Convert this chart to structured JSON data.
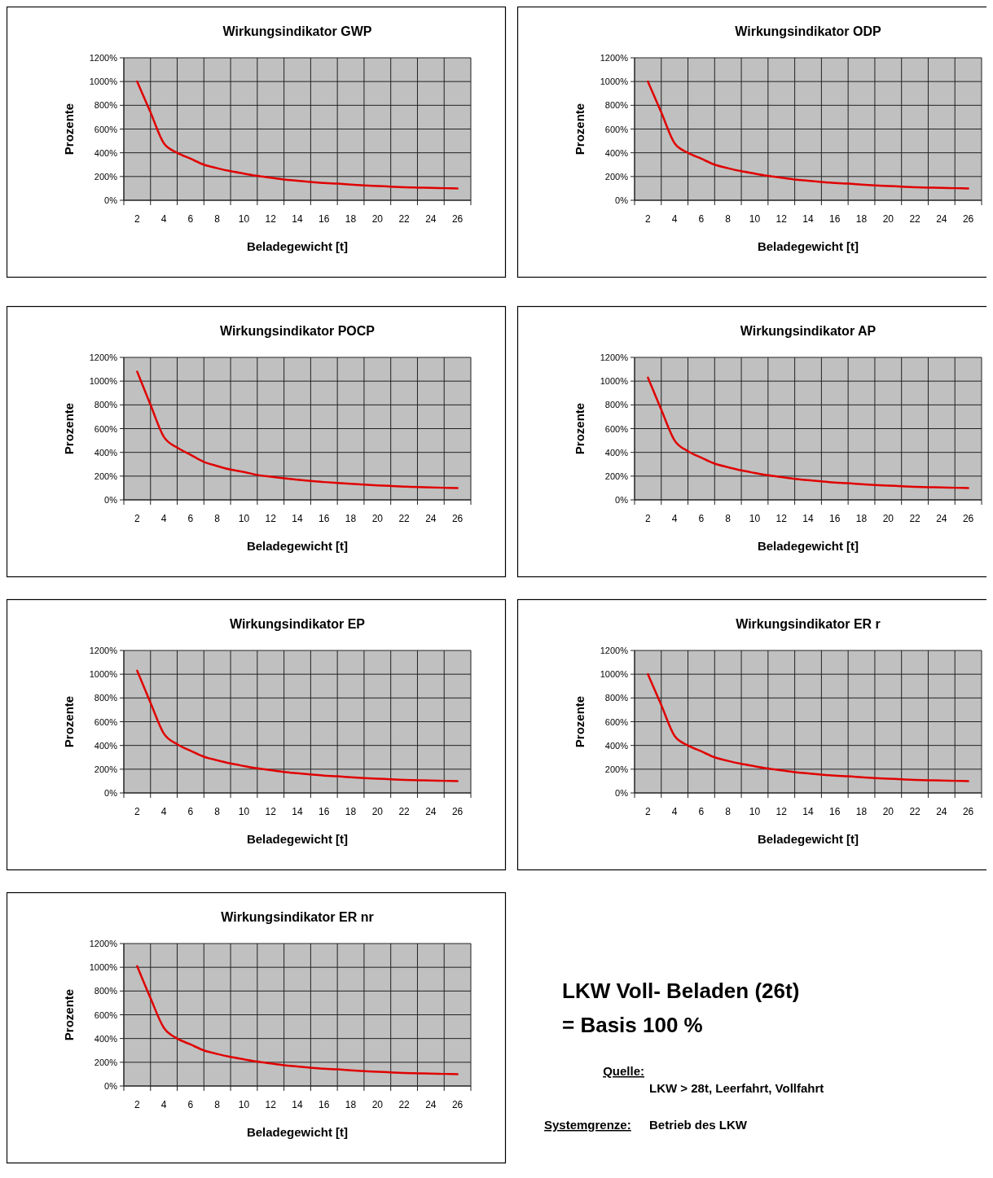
{
  "chart_data": [
    {
      "type": "line",
      "title": "Wirkungsindikator GWP",
      "xlabel": "Beladegewicht [t]",
      "ylabel": "Prozente",
      "x": [
        2,
        3,
        4,
        5,
        6,
        7,
        8,
        9,
        10,
        11,
        12,
        13,
        14,
        15,
        16,
        17,
        18,
        19,
        20,
        21,
        22,
        23,
        24,
        25,
        26
      ],
      "series": [
        {
          "color": "#e00000",
          "values": [
            1000,
            740,
            480,
            400,
            350,
            300,
            270,
            245,
            225,
            205,
            190,
            175,
            165,
            155,
            145,
            140,
            132,
            125,
            120,
            115,
            110,
            107,
            104,
            102,
            100
          ]
        }
      ],
      "xlim": [
        1,
        27
      ],
      "xticks": [
        {
          "value": 1,
          "label": null
        },
        2,
        {
          "value": 3,
          "label": null
        },
        4,
        {
          "value": 5,
          "label": null
        },
        6,
        {
          "value": 7,
          "label": null
        },
        8,
        {
          "value": 9,
          "label": null
        },
        10,
        {
          "value": 11,
          "label": null
        },
        12,
        {
          "value": 13,
          "label": null
        },
        14,
        {
          "value": 15,
          "label": null
        },
        16,
        {
          "value": 17,
          "label": null
        },
        18,
        {
          "value": 19,
          "label": null
        },
        20,
        {
          "value": 21,
          "label": null
        },
        22,
        {
          "value": 23,
          "label": null
        },
        24,
        {
          "value": 25,
          "label": null
        },
        26,
        {
          "value": 27,
          "label": null
        }
      ],
      "ylim": [
        0,
        1200
      ],
      "yticks": [
        {
          "value": 0,
          "label": "0%"
        },
        {
          "value": 200,
          "label": "200%"
        },
        {
          "value": 400,
          "label": "400%"
        },
        {
          "value": 600,
          "label": "600%"
        },
        {
          "value": 800,
          "label": "800%"
        },
        {
          "value": 1000,
          "label": "1000%"
        },
        {
          "value": 1200,
          "label": "1200%"
        }
      ],
      "grid": true
    },
    {
      "type": "line",
      "title": "Wirkungsindikator ODP",
      "xlabel": "Beladegewicht [t]",
      "ylabel": "Prozente",
      "x": [
        2,
        3,
        4,
        5,
        6,
        7,
        8,
        9,
        10,
        11,
        12,
        13,
        14,
        15,
        16,
        17,
        18,
        19,
        20,
        21,
        22,
        23,
        24,
        25,
        26
      ],
      "series": [
        {
          "color": "#e00000",
          "values": [
            1000,
            740,
            480,
            400,
            350,
            300,
            270,
            245,
            225,
            205,
            190,
            175,
            165,
            155,
            145,
            140,
            132,
            125,
            120,
            115,
            110,
            107,
            104,
            102,
            100
          ]
        }
      ],
      "xlim": [
        1,
        27
      ],
      "xticks": [
        {
          "value": 1,
          "label": null
        },
        2,
        {
          "value": 3,
          "label": null
        },
        4,
        {
          "value": 5,
          "label": null
        },
        6,
        {
          "value": 7,
          "label": null
        },
        8,
        {
          "value": 9,
          "label": null
        },
        10,
        {
          "value": 11,
          "label": null
        },
        12,
        {
          "value": 13,
          "label": null
        },
        14,
        {
          "value": 15,
          "label": null
        },
        16,
        {
          "value": 17,
          "label": null
        },
        18,
        {
          "value": 19,
          "label": null
        },
        20,
        {
          "value": 21,
          "label": null
        },
        22,
        {
          "value": 23,
          "label": null
        },
        24,
        {
          "value": 25,
          "label": null
        },
        26,
        {
          "value": 27,
          "label": null
        }
      ],
      "ylim": [
        0,
        1200
      ],
      "yticks": [
        {
          "value": 0,
          "label": "0%"
        },
        {
          "value": 200,
          "label": "200%"
        },
        {
          "value": 400,
          "label": "400%"
        },
        {
          "value": 600,
          "label": "600%"
        },
        {
          "value": 800,
          "label": "800%"
        },
        {
          "value": 1000,
          "label": "1000%"
        },
        {
          "value": 1200,
          "label": "1200%"
        }
      ],
      "grid": true
    },
    {
      "type": "line",
      "title": "Wirkungsindikator POCP",
      "xlabel": "Beladegewicht [t]",
      "ylabel": "Prozente",
      "x": [
        2,
        3,
        4,
        5,
        6,
        7,
        8,
        9,
        10,
        11,
        12,
        13,
        14,
        15,
        16,
        17,
        18,
        19,
        20,
        21,
        22,
        23,
        24,
        25,
        26
      ],
      "series": [
        {
          "color": "#e00000",
          "values": [
            1080,
            800,
            530,
            440,
            380,
            320,
            285,
            255,
            235,
            210,
            195,
            182,
            170,
            160,
            150,
            143,
            135,
            128,
            122,
            117,
            112,
            108,
            105,
            102,
            100
          ]
        }
      ],
      "xlim": [
        1,
        27
      ],
      "xticks": [
        {
          "value": 1,
          "label": null
        },
        2,
        {
          "value": 3,
          "label": null
        },
        4,
        {
          "value": 5,
          "label": null
        },
        6,
        {
          "value": 7,
          "label": null
        },
        8,
        {
          "value": 9,
          "label": null
        },
        10,
        {
          "value": 11,
          "label": null
        },
        12,
        {
          "value": 13,
          "label": null
        },
        14,
        {
          "value": 15,
          "label": null
        },
        16,
        {
          "value": 17,
          "label": null
        },
        18,
        {
          "value": 19,
          "label": null
        },
        20,
        {
          "value": 21,
          "label": null
        },
        22,
        {
          "value": 23,
          "label": null
        },
        24,
        {
          "value": 25,
          "label": null
        },
        26,
        {
          "value": 27,
          "label": null
        }
      ],
      "ylim": [
        0,
        1200
      ],
      "yticks": [
        {
          "value": 0,
          "label": "0%"
        },
        {
          "value": 200,
          "label": "200%"
        },
        {
          "value": 400,
          "label": "400%"
        },
        {
          "value": 600,
          "label": "600%"
        },
        {
          "value": 800,
          "label": "800%"
        },
        {
          "value": 1000,
          "label": "1000%"
        },
        {
          "value": 1200,
          "label": "1200%"
        }
      ],
      "grid": true
    },
    {
      "type": "line",
      "title": "Wirkungsindikator AP",
      "xlabel": "Beladegewicht [t]",
      "ylabel": "Prozente",
      "x": [
        2,
        3,
        4,
        5,
        6,
        7,
        8,
        9,
        10,
        11,
        12,
        13,
        14,
        15,
        16,
        17,
        18,
        19,
        20,
        21,
        22,
        23,
        24,
        25,
        26
      ],
      "series": [
        {
          "color": "#e00000",
          "values": [
            1030,
            760,
            500,
            410,
            355,
            305,
            275,
            248,
            227,
            207,
            192,
            177,
            166,
            156,
            146,
            140,
            132,
            125,
            120,
            115,
            110,
            107,
            104,
            102,
            100
          ]
        }
      ],
      "xlim": [
        1,
        27
      ],
      "xticks": [
        {
          "value": 1,
          "label": null
        },
        2,
        {
          "value": 3,
          "label": null
        },
        4,
        {
          "value": 5,
          "label": null
        },
        6,
        {
          "value": 7,
          "label": null
        },
        8,
        {
          "value": 9,
          "label": null
        },
        10,
        {
          "value": 11,
          "label": null
        },
        12,
        {
          "value": 13,
          "label": null
        },
        14,
        {
          "value": 15,
          "label": null
        },
        16,
        {
          "value": 17,
          "label": null
        },
        18,
        {
          "value": 19,
          "label": null
        },
        20,
        {
          "value": 21,
          "label": null
        },
        22,
        {
          "value": 23,
          "label": null
        },
        24,
        {
          "value": 25,
          "label": null
        },
        26,
        {
          "value": 27,
          "label": null
        }
      ],
      "ylim": [
        0,
        1200
      ],
      "yticks": [
        {
          "value": 0,
          "label": "0%"
        },
        {
          "value": 200,
          "label": "200%"
        },
        {
          "value": 400,
          "label": "400%"
        },
        {
          "value": 600,
          "label": "600%"
        },
        {
          "value": 800,
          "label": "800%"
        },
        {
          "value": 1000,
          "label": "1000%"
        },
        {
          "value": 1200,
          "label": "1200%"
        }
      ],
      "grid": true
    },
    {
      "type": "line",
      "title": "Wirkungsindikator EP",
      "xlabel": "Beladegewicht [t]",
      "ylabel": "Prozente",
      "x": [
        2,
        3,
        4,
        5,
        6,
        7,
        8,
        9,
        10,
        11,
        12,
        13,
        14,
        15,
        16,
        17,
        18,
        19,
        20,
        21,
        22,
        23,
        24,
        25,
        26
      ],
      "series": [
        {
          "color": "#e00000",
          "values": [
            1030,
            760,
            500,
            410,
            355,
            305,
            275,
            248,
            227,
            207,
            192,
            177,
            166,
            156,
            146,
            140,
            132,
            125,
            120,
            115,
            110,
            107,
            104,
            102,
            100
          ]
        }
      ],
      "xlim": [
        1,
        27
      ],
      "xticks": [
        {
          "value": 1,
          "label": null
        },
        2,
        {
          "value": 3,
          "label": null
        },
        4,
        {
          "value": 5,
          "label": null
        },
        6,
        {
          "value": 7,
          "label": null
        },
        8,
        {
          "value": 9,
          "label": null
        },
        10,
        {
          "value": 11,
          "label": null
        },
        12,
        {
          "value": 13,
          "label": null
        },
        14,
        {
          "value": 15,
          "label": null
        },
        16,
        {
          "value": 17,
          "label": null
        },
        18,
        {
          "value": 19,
          "label": null
        },
        20,
        {
          "value": 21,
          "label": null
        },
        22,
        {
          "value": 23,
          "label": null
        },
        24,
        {
          "value": 25,
          "label": null
        },
        26,
        {
          "value": 27,
          "label": null
        }
      ],
      "ylim": [
        0,
        1200
      ],
      "yticks": [
        {
          "value": 0,
          "label": "0%"
        },
        {
          "value": 200,
          "label": "200%"
        },
        {
          "value": 400,
          "label": "400%"
        },
        {
          "value": 600,
          "label": "600%"
        },
        {
          "value": 800,
          "label": "800%"
        },
        {
          "value": 1000,
          "label": "1000%"
        },
        {
          "value": 1200,
          "label": "1200%"
        }
      ],
      "grid": true
    },
    {
      "type": "line",
      "title": "Wirkungsindikator ER r",
      "xlabel": "Beladegewicht [t]",
      "ylabel": "Prozente",
      "x": [
        2,
        3,
        4,
        5,
        6,
        7,
        8,
        9,
        10,
        11,
        12,
        13,
        14,
        15,
        16,
        17,
        18,
        19,
        20,
        21,
        22,
        23,
        24,
        25,
        26
      ],
      "series": [
        {
          "color": "#e00000",
          "values": [
            1000,
            740,
            480,
            400,
            350,
            300,
            270,
            245,
            225,
            205,
            190,
            175,
            165,
            155,
            145,
            140,
            132,
            125,
            120,
            115,
            110,
            107,
            104,
            102,
            100
          ]
        }
      ],
      "xlim": [
        1,
        27
      ],
      "xticks": [
        {
          "value": 1,
          "label": null
        },
        2,
        {
          "value": 3,
          "label": null
        },
        4,
        {
          "value": 5,
          "label": null
        },
        6,
        {
          "value": 7,
          "label": null
        },
        8,
        {
          "value": 9,
          "label": null
        },
        10,
        {
          "value": 11,
          "label": null
        },
        12,
        {
          "value": 13,
          "label": null
        },
        14,
        {
          "value": 15,
          "label": null
        },
        16,
        {
          "value": 17,
          "label": null
        },
        18,
        {
          "value": 19,
          "label": null
        },
        20,
        {
          "value": 21,
          "label": null
        },
        22,
        {
          "value": 23,
          "label": null
        },
        24,
        {
          "value": 25,
          "label": null
        },
        26,
        {
          "value": 27,
          "label": null
        }
      ],
      "ylim": [
        0,
        1200
      ],
      "yticks": [
        {
          "value": 0,
          "label": "0%"
        },
        {
          "value": 200,
          "label": "200%"
        },
        {
          "value": 400,
          "label": "400%"
        },
        {
          "value": 600,
          "label": "600%"
        },
        {
          "value": 800,
          "label": "800%"
        },
        {
          "value": 1000,
          "label": "1000%"
        },
        {
          "value": 1200,
          "label": "1200%"
        }
      ],
      "grid": true
    },
    {
      "type": "line",
      "title": "Wirkungsindikator ER nr",
      "xlabel": "Beladegewicht [t]",
      "ylabel": "Prozente",
      "x": [
        2,
        3,
        4,
        5,
        6,
        7,
        8,
        9,
        10,
        11,
        12,
        13,
        14,
        15,
        16,
        17,
        18,
        19,
        20,
        21,
        22,
        23,
        24,
        25,
        26
      ],
      "series": [
        {
          "color": "#e00000",
          "values": [
            1010,
            740,
            490,
            400,
            350,
            300,
            270,
            245,
            225,
            205,
            190,
            175,
            165,
            155,
            145,
            140,
            132,
            125,
            120,
            115,
            110,
            107,
            104,
            102,
            100
          ]
        }
      ],
      "xlim": [
        1,
        27
      ],
      "xticks": [
        {
          "value": 1,
          "label": null
        },
        2,
        {
          "value": 3,
          "label": null
        },
        4,
        {
          "value": 5,
          "label": null
        },
        6,
        {
          "value": 7,
          "label": null
        },
        8,
        {
          "value": 9,
          "label": null
        },
        10,
        {
          "value": 11,
          "label": null
        },
        12,
        {
          "value": 13,
          "label": null
        },
        14,
        {
          "value": 15,
          "label": null
        },
        16,
        {
          "value": 17,
          "label": null
        },
        18,
        {
          "value": 19,
          "label": null
        },
        20,
        {
          "value": 21,
          "label": null
        },
        22,
        {
          "value": 23,
          "label": null
        },
        24,
        {
          "value": 25,
          "label": null
        },
        26,
        {
          "value": 27,
          "label": null
        }
      ],
      "ylim": [
        0,
        1200
      ],
      "yticks": [
        {
          "value": 0,
          "label": "0%"
        },
        {
          "value": 200,
          "label": "200%"
        },
        {
          "value": 400,
          "label": "400%"
        },
        {
          "value": 600,
          "label": "600%"
        },
        {
          "value": 800,
          "label": "800%"
        },
        {
          "value": 1000,
          "label": "1000%"
        },
        {
          "value": 1200,
          "label": "1200%"
        }
      ],
      "grid": true
    },
    {
      "type": "other",
      "title": "LKW Voll- Beladen (26t)",
      "subtitle": "= Basis 100 %",
      "annotations": [
        "Quelle:",
        "LKW > 28t, Leerfahrt, Vollfahrt",
        "Systemgrenze:",
        "Betrieb des LKW"
      ]
    }
  ]
}
